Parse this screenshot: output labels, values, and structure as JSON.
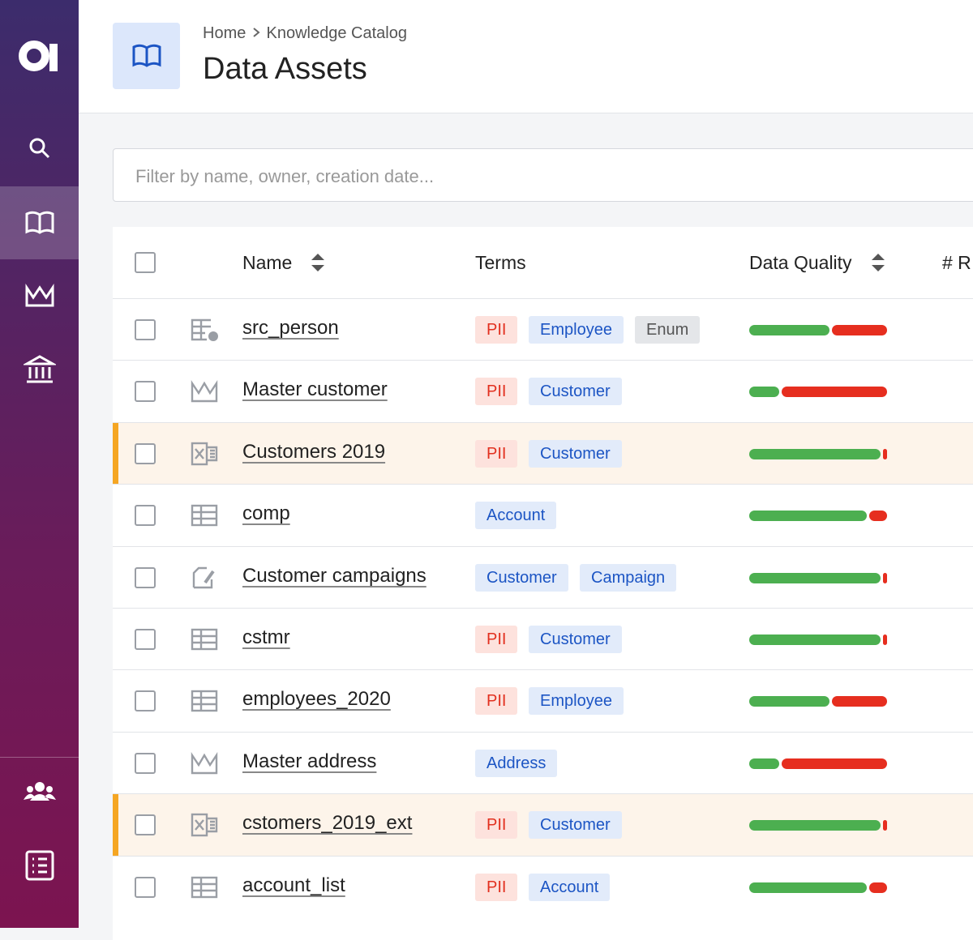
{
  "sidebar": {
    "active": "catalog"
  },
  "header": {
    "breadcrumb": [
      "Home",
      "Knowledge Catalog"
    ],
    "title": "Data Assets"
  },
  "filter": {
    "placeholder": "Filter by name, owner, creation date..."
  },
  "table": {
    "columns": [
      "Name",
      "Terms",
      "Data Quality",
      "# R"
    ],
    "rows": [
      {
        "icon": "table-dot",
        "name": "src_person",
        "highlighted": false,
        "terms": [
          {
            "label": "PII",
            "kind": "pii"
          },
          {
            "label": "Employee",
            "kind": "term"
          },
          {
            "label": "Enum",
            "kind": "other"
          }
        ],
        "quality": 58
      },
      {
        "icon": "crown",
        "name": "Master customer",
        "highlighted": false,
        "terms": [
          {
            "label": "PII",
            "kind": "pii"
          },
          {
            "label": "Customer",
            "kind": "term"
          }
        ],
        "quality": 22
      },
      {
        "icon": "excel",
        "name": "Customers 2019",
        "highlighted": true,
        "terms": [
          {
            "label": "PII",
            "kind": "pii"
          },
          {
            "label": "Customer",
            "kind": "term"
          }
        ],
        "quality": 95
      },
      {
        "icon": "table",
        "name": "comp",
        "highlighted": false,
        "terms": [
          {
            "label": "Account",
            "kind": "term"
          }
        ],
        "quality": 85
      },
      {
        "icon": "edit",
        "name": "Customer campaigns",
        "highlighted": false,
        "terms": [
          {
            "label": "Customer",
            "kind": "term"
          },
          {
            "label": "Campaign",
            "kind": "term"
          }
        ],
        "quality": 95
      },
      {
        "icon": "table",
        "name": "cstmr",
        "highlighted": false,
        "terms": [
          {
            "label": "PII",
            "kind": "pii"
          },
          {
            "label": "Customer",
            "kind": "term"
          }
        ],
        "quality": 95
      },
      {
        "icon": "table",
        "name": "employees_2020",
        "highlighted": false,
        "terms": [
          {
            "label": "PII",
            "kind": "pii"
          },
          {
            "label": "Employee",
            "kind": "term"
          }
        ],
        "quality": 58
      },
      {
        "icon": "crown",
        "name": "Master address",
        "highlighted": false,
        "terms": [
          {
            "label": "Address",
            "kind": "term"
          }
        ],
        "quality": 22
      },
      {
        "icon": "excel",
        "name": "cstomers_2019_ext",
        "highlighted": true,
        "terms": [
          {
            "label": "PII",
            "kind": "pii"
          },
          {
            "label": "Customer",
            "kind": "term"
          }
        ],
        "quality": 95
      },
      {
        "icon": "table",
        "name": "account_list",
        "highlighted": false,
        "terms": [
          {
            "label": "PII",
            "kind": "pii"
          },
          {
            "label": "Account",
            "kind": "term"
          }
        ],
        "quality": 85
      }
    ]
  }
}
